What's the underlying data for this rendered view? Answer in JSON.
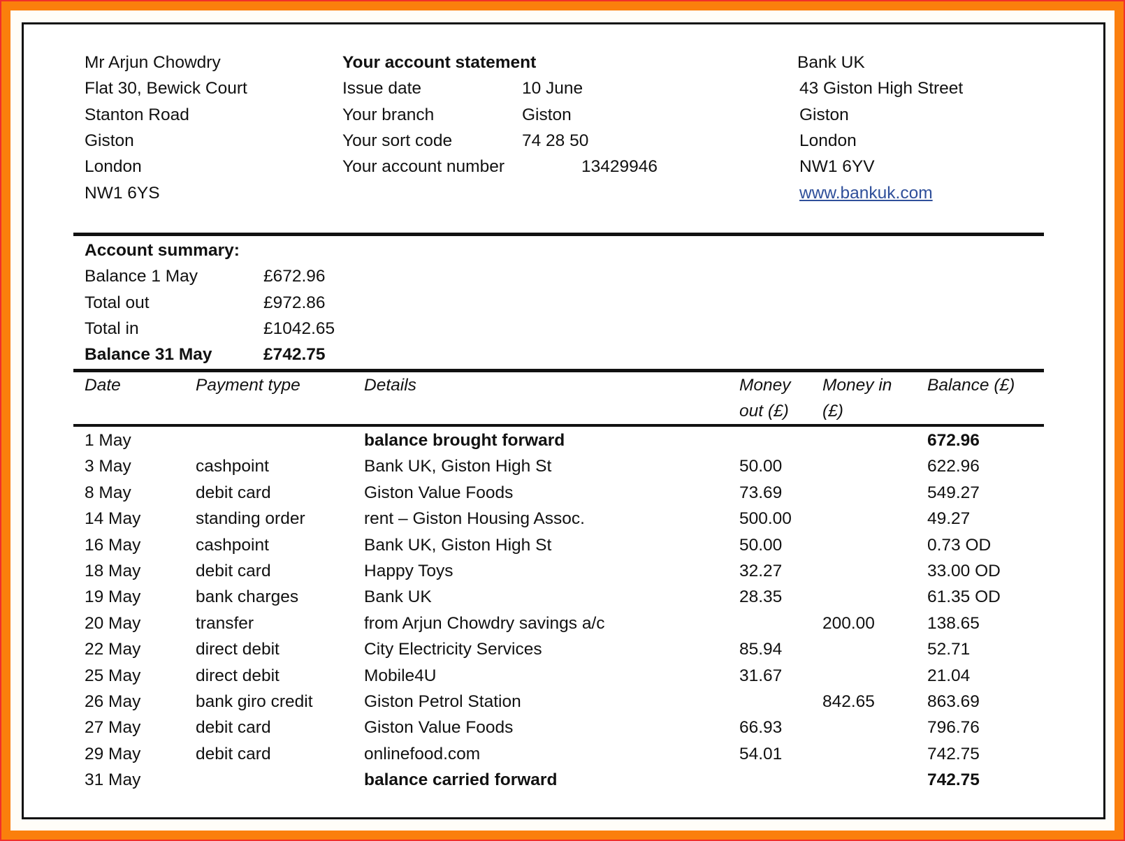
{
  "customer": {
    "lines": [
      "Mr Arjun Chowdry",
      "Flat 30, Bewick Court",
      "Stanton Road",
      "Giston",
      "London",
      "NW1 6YS"
    ]
  },
  "statement": {
    "title": "Your account statement",
    "fields": [
      {
        "label": "Issue date",
        "value": "10 June"
      },
      {
        "label": "Your branch",
        "value": "Giston"
      },
      {
        "label": "Your sort code",
        "value": "74 28 50"
      },
      {
        "label": "Your account number",
        "value": "13429946"
      }
    ]
  },
  "bank": {
    "lines": [
      "Bank UK",
      "43 Giston High Street",
      "Giston",
      "London",
      "NW1 6YV"
    ],
    "website": "www.bankuk.com"
  },
  "summary": {
    "title": "Account summary:",
    "rows": [
      {
        "label": "Balance 1 May",
        "value": "£672.96",
        "bold": false
      },
      {
        "label": "Total out",
        "value": "£972.86",
        "bold": false
      },
      {
        "label": "Total in",
        "value": "£1042.65",
        "bold": false
      },
      {
        "label": "Balance 31 May",
        "value": "£742.75",
        "bold": true
      }
    ]
  },
  "table": {
    "headers": {
      "date": "Date",
      "type": "Payment type",
      "details": "Details",
      "out1": "Money",
      "out2": "out (£)",
      "in1": "Money in",
      "in2": "(£)",
      "balance": "Balance (£)"
    },
    "rows": [
      {
        "date": "1 May",
        "type": "",
        "details": "balance brought forward",
        "out": "",
        "in": "",
        "balance": "672.96",
        "bold": true
      },
      {
        "date": "3 May",
        "type": "cashpoint",
        "details": "Bank UK, Giston High St",
        "out": "50.00",
        "in": "",
        "balance": "622.96"
      },
      {
        "date": "8 May",
        "type": "debit card",
        "details": "Giston Value Foods",
        "out": "73.69",
        "in": "",
        "balance": "549.27"
      },
      {
        "date": "14 May",
        "type": "standing order",
        "details": "rent – Giston Housing Assoc.",
        "out": "500.00",
        "in": "",
        "balance": "49.27"
      },
      {
        "date": "16 May",
        "type": "cashpoint",
        "details": "Bank UK, Giston High St",
        "out": "50.00",
        "in": "",
        "balance": "0.73 OD"
      },
      {
        "date": "18 May",
        "type": "debit card",
        "details": "Happy Toys",
        "out": "32.27",
        "in": "",
        "balance": "33.00 OD"
      },
      {
        "date": "19 May",
        "type": "bank charges",
        "details": "Bank UK",
        "out": "28.35",
        "in": "",
        "balance": "61.35 OD"
      },
      {
        "date": "20 May",
        "type": "transfer",
        "details": "from Arjun Chowdry savings a/c",
        "out": "",
        "in": "200.00",
        "balance": "138.65"
      },
      {
        "date": "22 May",
        "type": "direct debit",
        "details": "City Electricity Services",
        "out": "85.94",
        "in": "",
        "balance": "52.71"
      },
      {
        "date": "25 May",
        "type": "direct debit",
        "details": "Mobile4U",
        "out": "31.67",
        "in": "",
        "balance": "21.04"
      },
      {
        "date": "26 May",
        "type": "bank giro credit",
        "details": "Giston Petrol Station",
        "out": "",
        "in": "842.65",
        "balance": "863.69"
      },
      {
        "date": "27 May",
        "type": "debit card",
        "details": "Giston Value Foods",
        "out": "66.93",
        "in": "",
        "balance": "796.76"
      },
      {
        "date": "29 May",
        "type": "debit card",
        "details": "onlinefood.com",
        "out": "54.01",
        "in": "",
        "balance": "742.75"
      },
      {
        "date": "31 May",
        "type": "",
        "details": "balance carried forward",
        "out": "",
        "in": "",
        "balance": "742.75",
        "bold": true
      }
    ]
  },
  "colors": {
    "frame": "#fb7f0c",
    "link": "#2f4f9a"
  }
}
